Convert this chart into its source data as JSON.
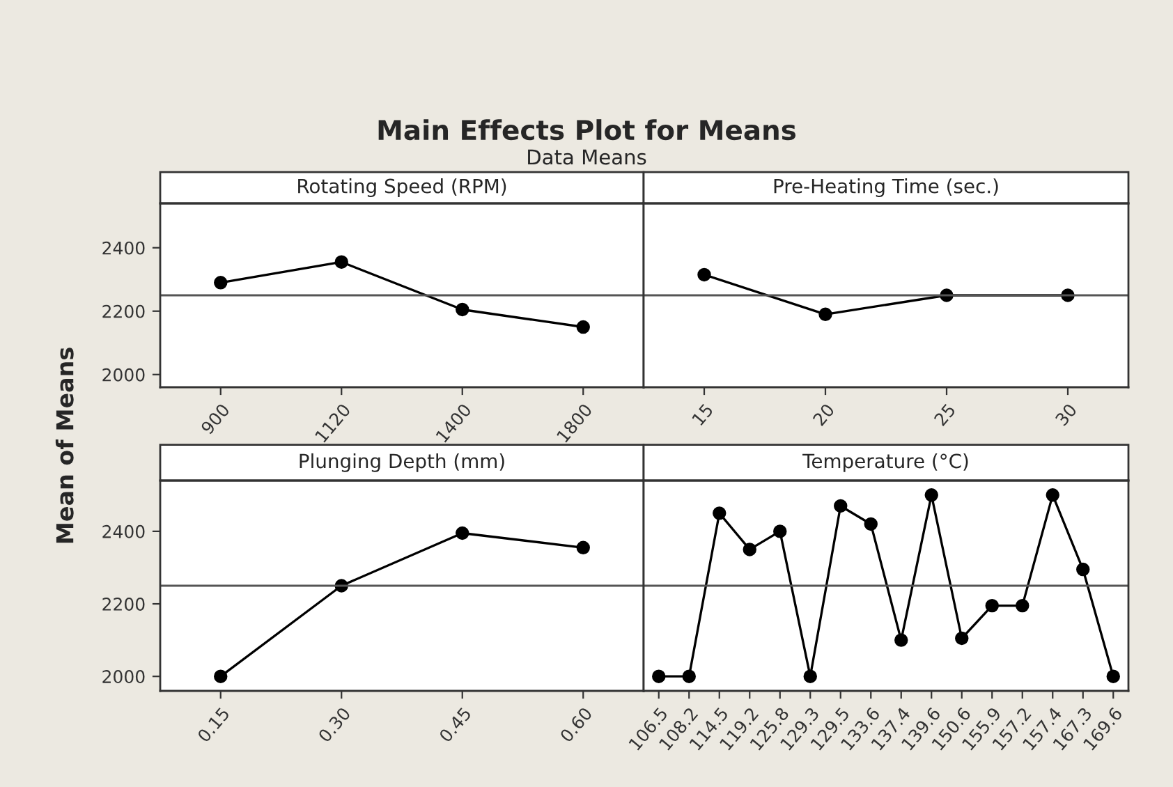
{
  "chart_data": [
    {
      "type": "line",
      "annotations": [
        "Main Effects Plot for Means",
        "Data Means"
      ],
      "ylabel": "Mean of Means",
      "title": "Rotating Speed (RPM)",
      "categories": [
        "900",
        "1120",
        "1400",
        "1800"
      ],
      "values": [
        2290,
        2355,
        2205,
        2150
      ],
      "color": "#000000",
      "marker": "circle",
      "line_style": "solid",
      "ylim": [
        1960,
        2540
      ],
      "yticks": [
        2000,
        2200,
        2400
      ],
      "ref_lines": [
        {
          "axis": "y",
          "value": 2250
        }
      ],
      "grid": false,
      "legend": false
    },
    {
      "type": "line",
      "title": "Pre-Heating Time (sec.)",
      "categories": [
        "15",
        "20",
        "25",
        "30"
      ],
      "values": [
        2315,
        2190,
        2250,
        2250
      ],
      "color": "#000000",
      "marker": "circle",
      "line_style": "solid",
      "ylim": [
        1960,
        2540
      ],
      "yticks": [
        2000,
        2200,
        2400
      ],
      "tick_labels": "x",
      "ref_lines": [
        {
          "axis": "y",
          "value": 2250
        }
      ],
      "grid": false,
      "legend": false
    },
    {
      "type": "line",
      "title": "Plunging Depth (mm)",
      "categories": [
        "0.15",
        "0.30",
        "0.45",
        "0.60"
      ],
      "values": [
        2000,
        2250,
        2395,
        2355
      ],
      "color": "#000000",
      "marker": "circle",
      "line_style": "solid",
      "ylim": [
        1960,
        2540
      ],
      "yticks": [
        2000,
        2200,
        2400
      ],
      "ref_lines": [
        {
          "axis": "y",
          "value": 2250
        }
      ],
      "grid": false,
      "legend": false
    },
    {
      "type": "line",
      "title": "Temperature (°C)",
      "categories": [
        "106.5",
        "108.2",
        "114.5",
        "119.2",
        "125.8",
        "129.3",
        "129.5",
        "133.6",
        "137.4",
        "139.6",
        "150.6",
        "155.9",
        "157.2",
        "157.4",
        "167.3",
        "169.6"
      ],
      "values": [
        2000,
        2000,
        2450,
        2350,
        2400,
        2000,
        2470,
        2420,
        2100,
        2500,
        2105,
        2195,
        2195,
        2500,
        2295,
        2000
      ],
      "color": "#000000",
      "marker": "circle",
      "line_style": "solid",
      "ylim": [
        1960,
        2540
      ],
      "yticks": [
        2000,
        2200,
        2400
      ],
      "tick_labels": "x",
      "ref_lines": [
        {
          "axis": "y",
          "value": 2250
        }
      ],
      "grid": false,
      "legend": false
    }
  ]
}
